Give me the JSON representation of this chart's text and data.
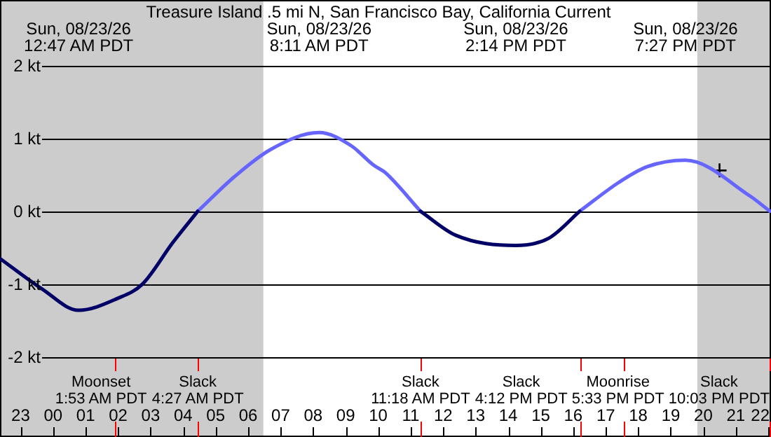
{
  "chart_data": {
    "type": "line",
    "title": "Treasure Island .5 mi N, San Francisco Bay, California Current",
    "x": [
      "--08-22T22:22",
      "--08-22T23:40",
      "--08-23T00:47",
      "--08-23T01:58",
      "--08-23T02:45",
      "--08-23T03:41",
      "--08-23T04:27",
      "--08-23T05:34",
      "--08-23T06:42",
      "--08-23T08:11",
      "--08-23T09:10",
      "--08-23T09:52",
      "--08-23T10:13",
      "--08-23T11:18",
      "--08-23T12:23",
      "--08-23T14:14",
      "--08-23T15:15",
      "--08-23T16:12",
      "--08-23T17:25",
      "--08-23T18:16",
      "--08-23T19:27",
      "--08-23T21:26",
      "--08-23T22:03"
    ],
    "series": [
      {
        "color": "#000066",
        "values": [
          -0.65,
          -1.07,
          -1.36,
          -1.2,
          -1.0,
          -0.43,
          0,
          null,
          null,
          null,
          null,
          null,
          null,
          0,
          -0.33,
          -0.47,
          -0.37,
          0,
          null,
          null,
          null,
          null,
          null
        ]
      },
      {
        "color": "#6666ff",
        "values": [
          null,
          null,
          null,
          null,
          null,
          null,
          0,
          0.47,
          0.85,
          1.08,
          0.9,
          0.63,
          0.53,
          0,
          null,
          null,
          null,
          0,
          0.4,
          0.61,
          0.7,
          0.21,
          0
        ]
      },
      {
        "type": "scatter",
        "x": [
          "--08-23T20:30"
        ],
        "values": [
          0.56
        ],
        "color": "#000000",
        "marker": "cross"
      }
    ],
    "xlim": [
      "--08-22T22:22",
      "--08-23T22:05"
    ],
    "xticks": [
      {
        "value": "--08-22T23:00",
        "label": "23"
      },
      {
        "value": "--08-23T00:00",
        "label": "00"
      },
      {
        "value": "--08-23T01:00",
        "label": "01"
      },
      {
        "value": "--08-23T02:00",
        "label": "02"
      },
      {
        "value": "--08-23T03:00",
        "label": "03"
      },
      {
        "value": "--08-23T04:00",
        "label": "04"
      },
      {
        "value": "--08-23T05:00",
        "label": "05"
      },
      {
        "value": "--08-23T06:00",
        "label": "06"
      },
      {
        "value": "--08-23T07:00",
        "label": "07"
      },
      {
        "value": "--08-23T08:00",
        "label": "08"
      },
      {
        "value": "--08-23T09:00",
        "label": "09"
      },
      {
        "value": "--08-23T10:00",
        "label": "10"
      },
      {
        "value": "--08-23T11:00",
        "label": "11"
      },
      {
        "value": "--08-23T12:00",
        "label": "12"
      },
      {
        "value": "--08-23T13:00",
        "label": "13"
      },
      {
        "value": "--08-23T14:00",
        "label": "14"
      },
      {
        "value": "--08-23T15:00",
        "label": "15"
      },
      {
        "value": "--08-23T16:00",
        "label": "16"
      },
      {
        "value": "--08-23T17:00",
        "label": "17"
      },
      {
        "value": "--08-23T18:00",
        "label": "18"
      },
      {
        "value": "--08-23T19:00",
        "label": "19"
      },
      {
        "value": "--08-23T20:00",
        "label": "20"
      },
      {
        "value": "--08-23T21:00",
        "label": "21"
      },
      {
        "value": "--08-23T22:00",
        "label": "22"
      }
    ],
    "x2lim": [
      "--08-22T22:22",
      "--08-23T22:05"
    ],
    "x2ticks": [
      {
        "value": "--08-23T00:47",
        "label": "Sun, 08/23/26\n12:47 AM PDT"
      },
      {
        "value": "--08-23T08:11",
        "label": "Sun, 08/23/26\n8:11 AM PDT"
      },
      {
        "value": "--08-23T14:14",
        "label": "Sun, 08/23/26\n2:14 PM PDT"
      },
      {
        "value": "--08-23T19:27",
        "label": "Sun, 08/23/26\n7:27 PM PDT"
      }
    ],
    "ylim": [
      -3.1,
      2.9
    ],
    "yticks": [
      {
        "value": 2,
        "label": "2 kt"
      },
      {
        "value": 1,
        "label": "1 kt"
      },
      {
        "value": 0,
        "label": "0 kt"
      },
      {
        "value": -1,
        "label": "-1 kt"
      },
      {
        "value": -2,
        "label": "-2 kt"
      }
    ],
    "grid": "y",
    "bands": [
      {
        "axis": "x",
        "from": "--08-22T22:22",
        "to": "--08-23T06:28",
        "color": "#cccccc"
      },
      {
        "axis": "x",
        "from": "--08-23T19:49",
        "to": "--08-23T22:05",
        "color": "#cccccc"
      }
    ],
    "ref_lines": [
      {
        "axis": "x",
        "value": "--08-23T01:53",
        "label": "Moonset\n1:53 AM PDT",
        "color": "#ff0000"
      },
      {
        "axis": "x",
        "value": "--08-23T04:27",
        "label": "Slack\n4:27 AM PDT",
        "color": "#ff0000"
      },
      {
        "axis": "x",
        "value": "--08-23T11:18",
        "label": "Slack\n11:18 AM PDT",
        "color": "#ff0000"
      },
      {
        "axis": "x",
        "value": "--08-23T16:12",
        "label": "Slack\n4:12 PM PDT",
        "color": "#ff0000"
      },
      {
        "axis": "x",
        "value": "--08-23T17:33",
        "label": "Moonrise\n5:33 PM PDT",
        "color": "#ff0000"
      },
      {
        "axis": "x",
        "value": "--08-23T22:03",
        "label": "Slack\n10:03 PM PDT",
        "color": "#ff0000"
      }
    ]
  }
}
